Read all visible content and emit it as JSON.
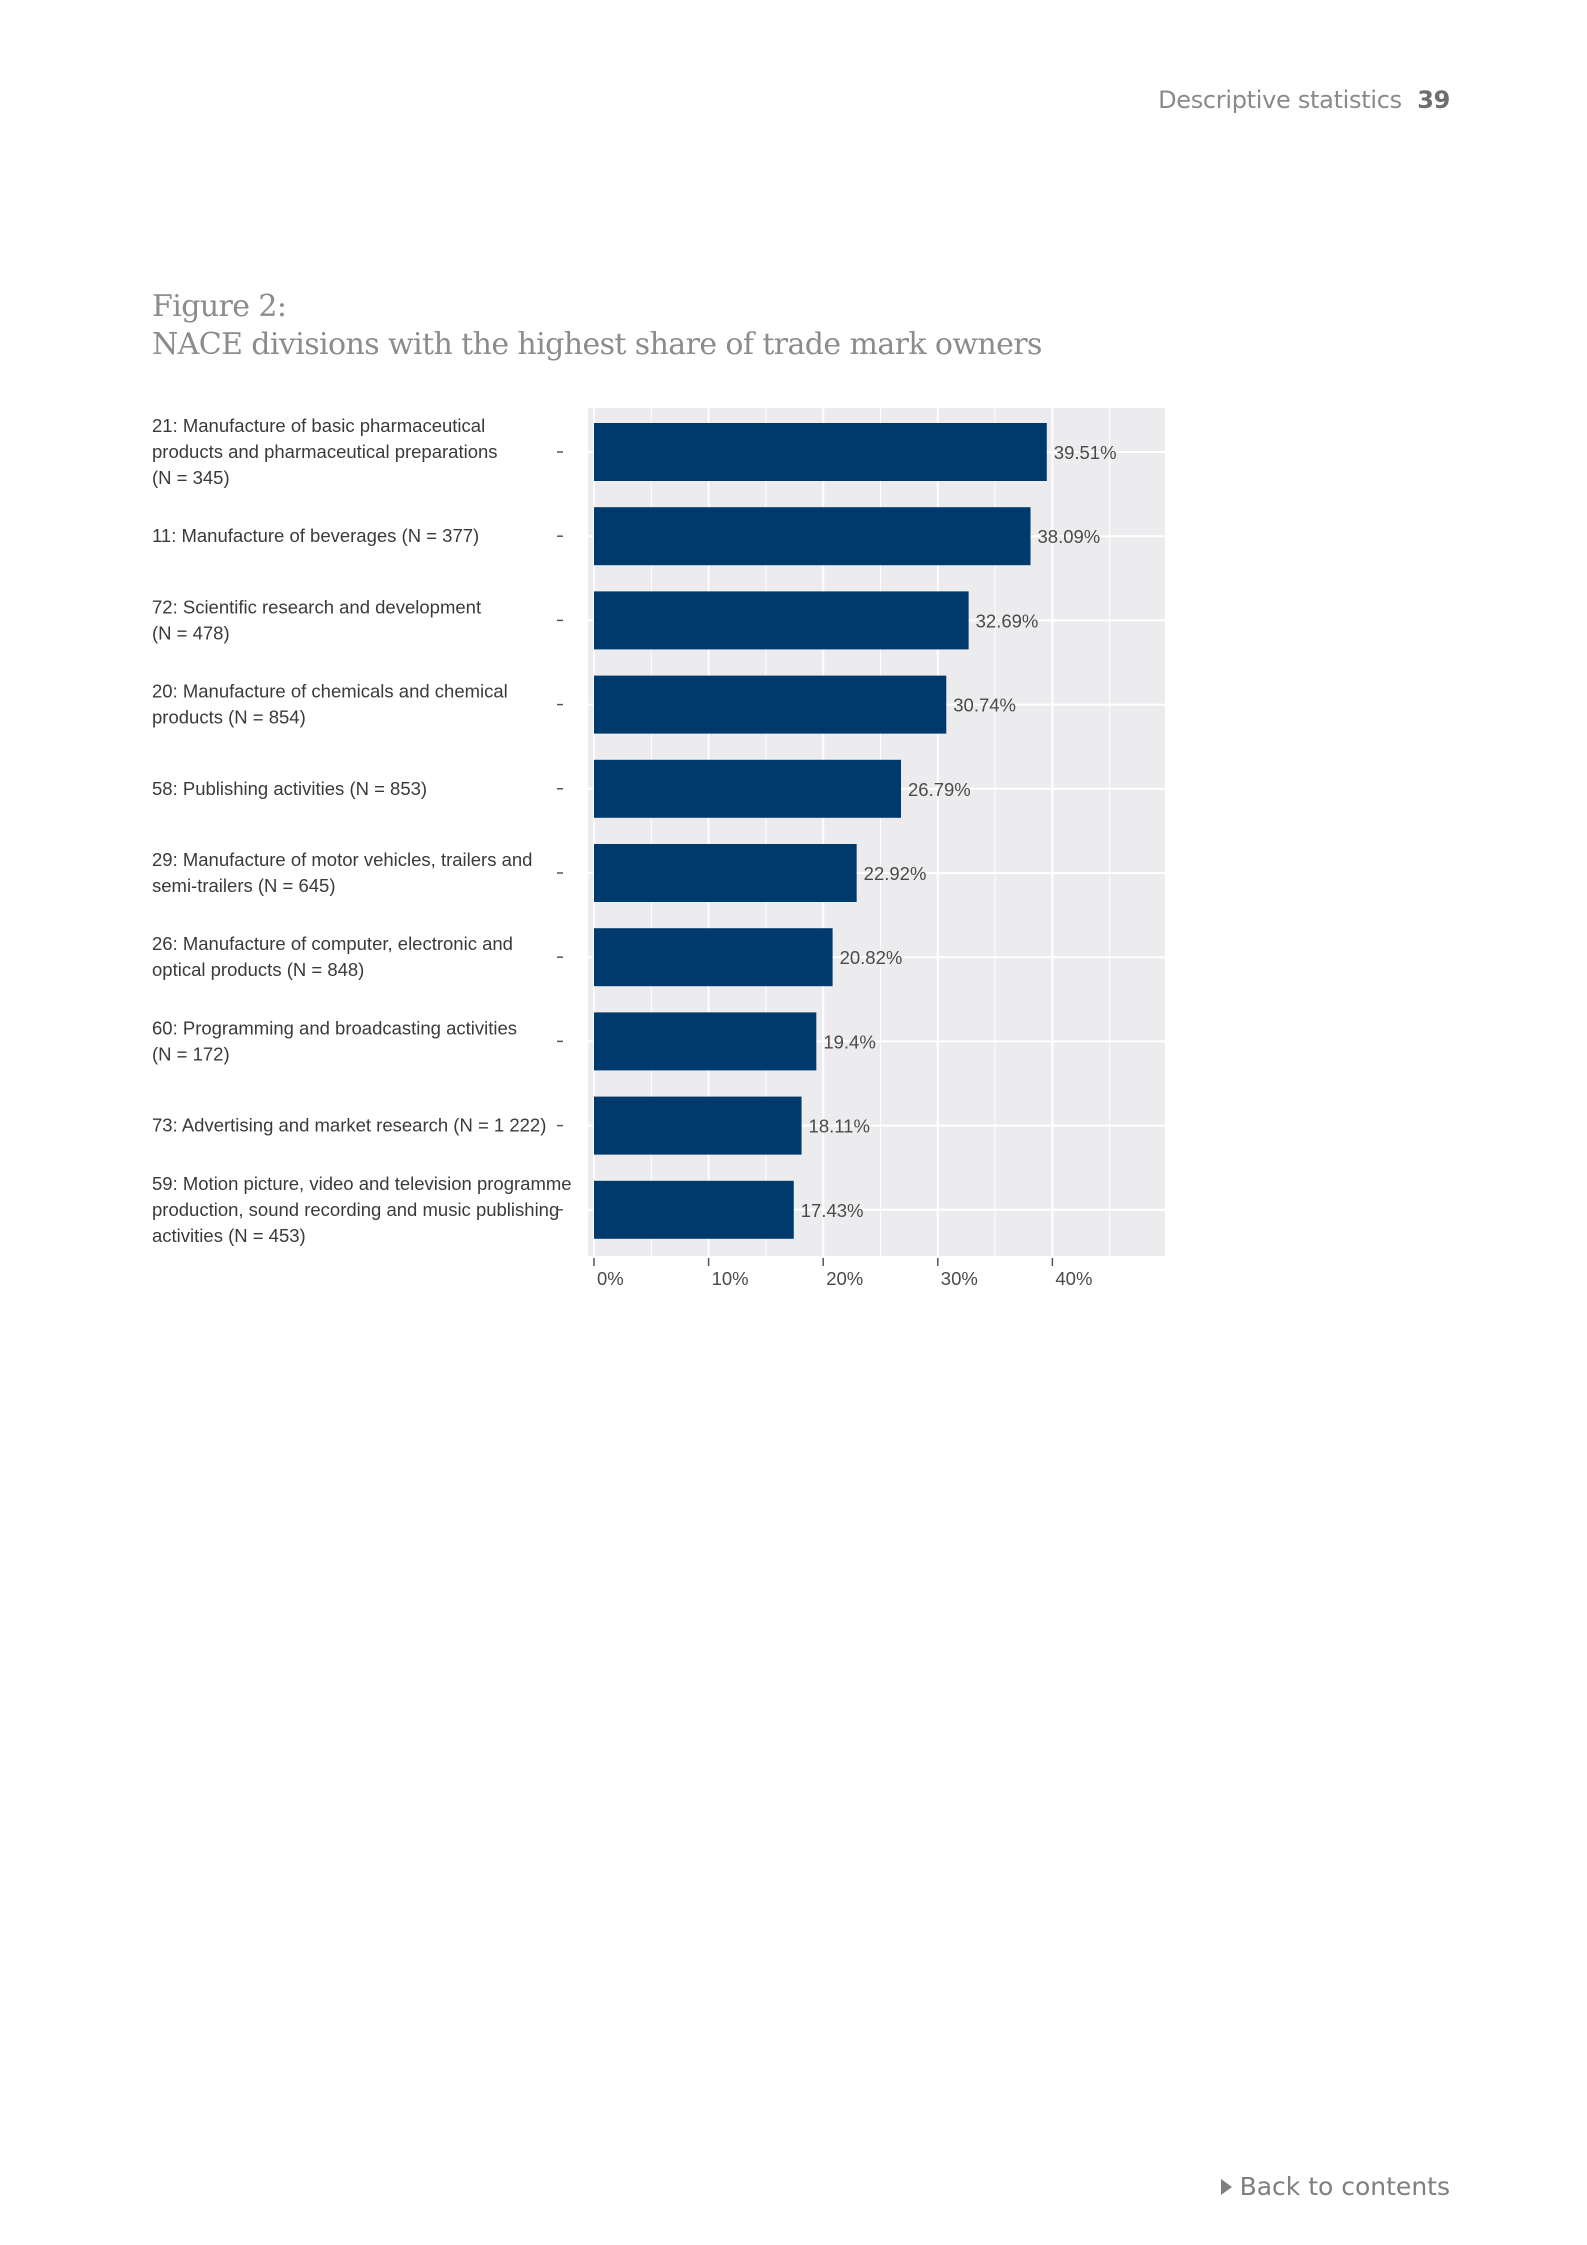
{
  "header": {
    "section": "Descriptive statistics",
    "page_number": "39"
  },
  "figure": {
    "label": "Figure 2:",
    "title": "NACE divisions with the highest share of trade mark owners"
  },
  "footer": {
    "back_link": "Back to contents"
  },
  "colors": {
    "bar": "#003a6c",
    "panel": "#ececee",
    "grid": "#ffffff"
  },
  "chart_data": {
    "type": "bar",
    "orientation": "horizontal",
    "categories": [
      [
        "21: Manufacture of basic pharmaceutical",
        "products and pharmaceutical preparations",
        "(N = 345)"
      ],
      [
        "11: Manufacture of beverages (N = 377)"
      ],
      [
        "72: Scientific research and development",
        "(N = 478)"
      ],
      [
        "20: Manufacture of chemicals and chemical",
        "products (N = 854)"
      ],
      [
        "58: Publishing activities (N = 853)"
      ],
      [
        "29: Manufacture of motor vehicles, trailers and",
        "semi-trailers (N = 645)"
      ],
      [
        "26: Manufacture of computer, electronic and",
        "optical products (N = 848)"
      ],
      [
        "60: Programming and broadcasting activities",
        "(N = 172)"
      ],
      [
        "73: Advertising and market research (N = 1 222)"
      ],
      [
        "59: Motion picture, video and television programme",
        "production, sound recording and music publishing",
        "activities (N = 453)"
      ]
    ],
    "values": [
      39.51,
      38.09,
      32.69,
      30.74,
      26.79,
      22.92,
      20.82,
      19.4,
      18.11,
      17.43
    ],
    "value_labels": [
      "39.51%",
      "38.09%",
      "32.69%",
      "30.74%",
      "26.79%",
      "22.92%",
      "20.82%",
      "19.4%",
      "18.11%",
      "17.43%"
    ],
    "xticks": [
      0,
      10,
      20,
      30,
      40
    ],
    "xtick_labels": [
      "0%",
      "10%",
      "20%",
      "30%",
      "40%"
    ],
    "xlim": [
      0,
      50
    ],
    "grid": true,
    "legend": false
  }
}
